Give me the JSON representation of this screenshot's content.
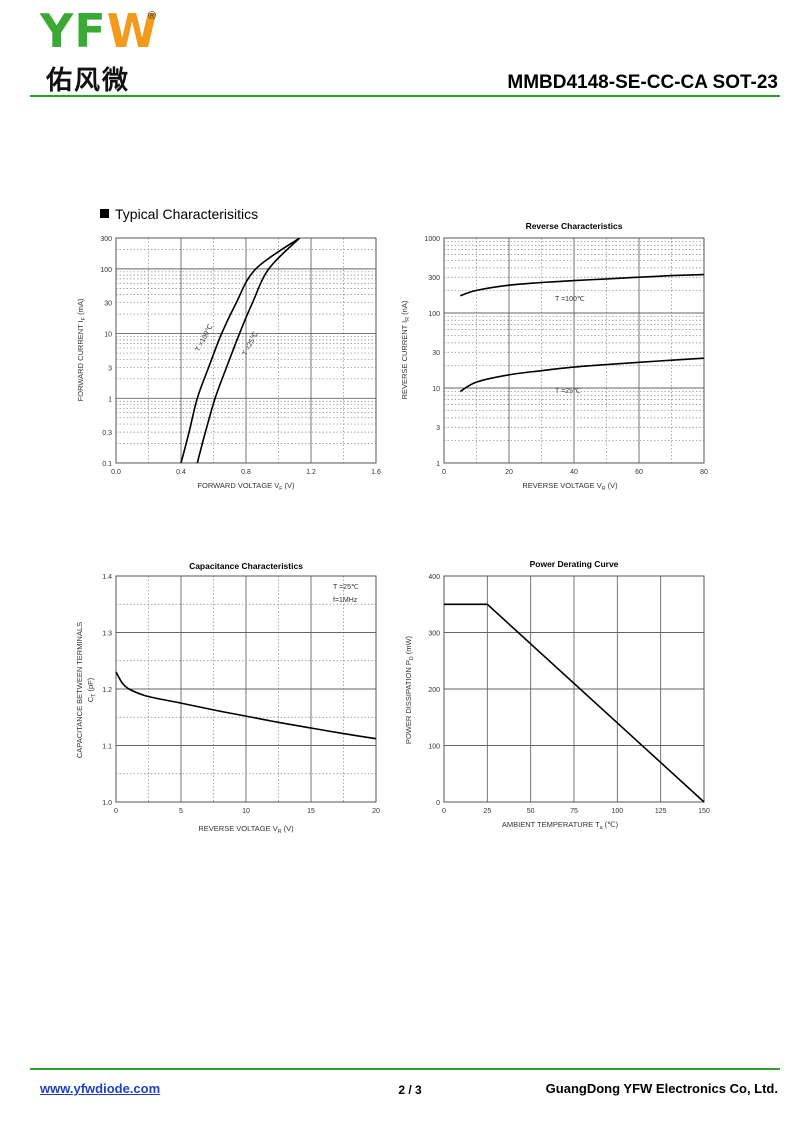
{
  "header": {
    "logo_text": "YFW",
    "logo_registered": "®",
    "logo_cn": "佑风微",
    "part_title": "MMBD4148-SE-CC-CA  SOT-23"
  },
  "section_title": "Typical  Characterisitics",
  "footer": {
    "website": "www.yfwdiode.com",
    "page": "2 / 3",
    "company": "GuangDong YFW Electronics Co, Ltd."
  },
  "chart_data": [
    {
      "type": "line",
      "title": "",
      "xlabel": "FORWARD VOLTAGE    V",
      "xlabel_sub": "F",
      "xlabel_unit": "(V)",
      "ylabel": "FORWARD CURRENT    I",
      "ylabel_sub": "F",
      "ylabel_unit": "(mA)",
      "xlim": [
        0,
        1.6
      ],
      "ylim": [
        0.1,
        300
      ],
      "yscale": "log",
      "grid": true,
      "x_ticks": [
        "0.0",
        "0.4",
        "0.8",
        "1.2",
        "1.6"
      ],
      "y_ticks": [
        {
          "value": 0.1,
          "label": "0.1"
        },
        {
          "value": 0.3,
          "label": "0.3"
        },
        {
          "value": 1,
          "label": "1"
        },
        {
          "value": 3,
          "label": "3"
        },
        {
          "value": 10,
          "label": "10"
        },
        {
          "value": 30,
          "label": "30"
        },
        {
          "value": 100,
          "label": "100"
        },
        {
          "value": 300,
          "label": "300"
        }
      ],
      "series": [
        {
          "name": "T =100℃",
          "points": [
            [
              0.4,
              0.1
            ],
            [
              0.45,
              0.3
            ],
            [
              0.5,
              1
            ],
            [
              0.57,
              3
            ],
            [
              0.65,
              10
            ],
            [
              0.74,
              30
            ],
            [
              0.86,
              100
            ],
            [
              1.13,
              300
            ]
          ]
        },
        {
          "name": "T =25℃",
          "points": [
            [
              0.5,
              0.1
            ],
            [
              0.55,
              0.3
            ],
            [
              0.61,
              1
            ],
            [
              0.68,
              3
            ],
            [
              0.76,
              10
            ],
            [
              0.84,
              30
            ],
            [
              0.94,
              100
            ],
            [
              1.13,
              300
            ]
          ]
        }
      ]
    },
    {
      "type": "line",
      "title": "Reverse    Characteristics",
      "xlabel": "REVERSE VOLTAGE    V",
      "xlabel_sub": "R",
      "xlabel_unit": "(V)",
      "ylabel": "REVERSE CURRENT    I",
      "ylabel_sub": "R",
      "ylabel_unit": "(nA)",
      "xlim": [
        0,
        80
      ],
      "ylim": [
        1,
        1000
      ],
      "yscale": "log",
      "grid": true,
      "x_ticks": [
        "0",
        "20",
        "40",
        "60",
        "80"
      ],
      "y_ticks": [
        {
          "value": 1,
          "label": "1"
        },
        {
          "value": 3,
          "label": "3"
        },
        {
          "value": 10,
          "label": "10"
        },
        {
          "value": 30,
          "label": "30"
        },
        {
          "value": 100,
          "label": "100"
        },
        {
          "value": 300,
          "label": "300"
        },
        {
          "value": 1000,
          "label": "1000"
        }
      ],
      "series": [
        {
          "name": "T =100℃",
          "points": [
            [
              5,
              170
            ],
            [
              10,
              200
            ],
            [
              20,
              235
            ],
            [
              30,
              255
            ],
            [
              40,
              270
            ],
            [
              50,
              285
            ],
            [
              60,
              300
            ],
            [
              70,
              315
            ],
            [
              80,
              325
            ]
          ]
        },
        {
          "name": "T =25℃",
          "points": [
            [
              5,
              9
            ],
            [
              10,
              12
            ],
            [
              20,
              15
            ],
            [
              30,
              17
            ],
            [
              40,
              19
            ],
            [
              50,
              20.5
            ],
            [
              60,
              22
            ],
            [
              70,
              23.5
            ],
            [
              80,
              25
            ]
          ]
        }
      ]
    },
    {
      "type": "line",
      "title": "Capacitance Characteristics",
      "xlabel": "REVERSE VOLTAGE    V",
      "xlabel_sub": "R",
      "xlabel_unit": "(V)",
      "ylabel": "CAPACITANCE BETWEEN TERMINALS",
      "ylabel2": "C",
      "ylabel2_sub": "T",
      "ylabel2_unit": "(pF)",
      "xlim": [
        0,
        20
      ],
      "ylim": [
        1.0,
        1.4
      ],
      "grid": true,
      "x_ticks": [
        "0",
        "5",
        "10",
        "15",
        "20"
      ],
      "y_ticks": [
        "1.0",
        "1.1",
        "1.2",
        "1.3",
        "1.4"
      ],
      "annotation_line1": "T =25℃",
      "annotation_line2": "f=1MHz",
      "series": [
        {
          "points": [
            [
              0,
              1.23
            ],
            [
              0.5,
              1.21
            ],
            [
              1,
              1.2
            ],
            [
              2,
              1.19
            ],
            [
              3,
              1.184
            ],
            [
              5,
              1.175
            ],
            [
              7.5,
              1.163
            ],
            [
              10,
              1.152
            ],
            [
              12.5,
              1.141
            ],
            [
              15,
              1.131
            ],
            [
              17.5,
              1.121
            ],
            [
              20,
              1.112
            ]
          ]
        }
      ]
    },
    {
      "type": "line",
      "title": "Power Derating Curve",
      "xlabel": "AMBIENT TEMPERATURE    T",
      "xlabel_sub": "a",
      "xlabel_unit": "(℃)",
      "ylabel": "POWER DISSIPATION    P",
      "ylabel_sub": "D",
      "ylabel_unit": "(mW)",
      "xlim": [
        0,
        150
      ],
      "ylim": [
        0,
        400
      ],
      "grid": true,
      "x_ticks": [
        "0",
        "25",
        "50",
        "75",
        "100",
        "125",
        "150"
      ],
      "y_ticks": [
        "0",
        "100",
        "200",
        "300",
        "400"
      ],
      "series": [
        {
          "points": [
            [
              0,
              350
            ],
            [
              25,
              350
            ],
            [
              150,
              0
            ]
          ]
        }
      ]
    }
  ]
}
